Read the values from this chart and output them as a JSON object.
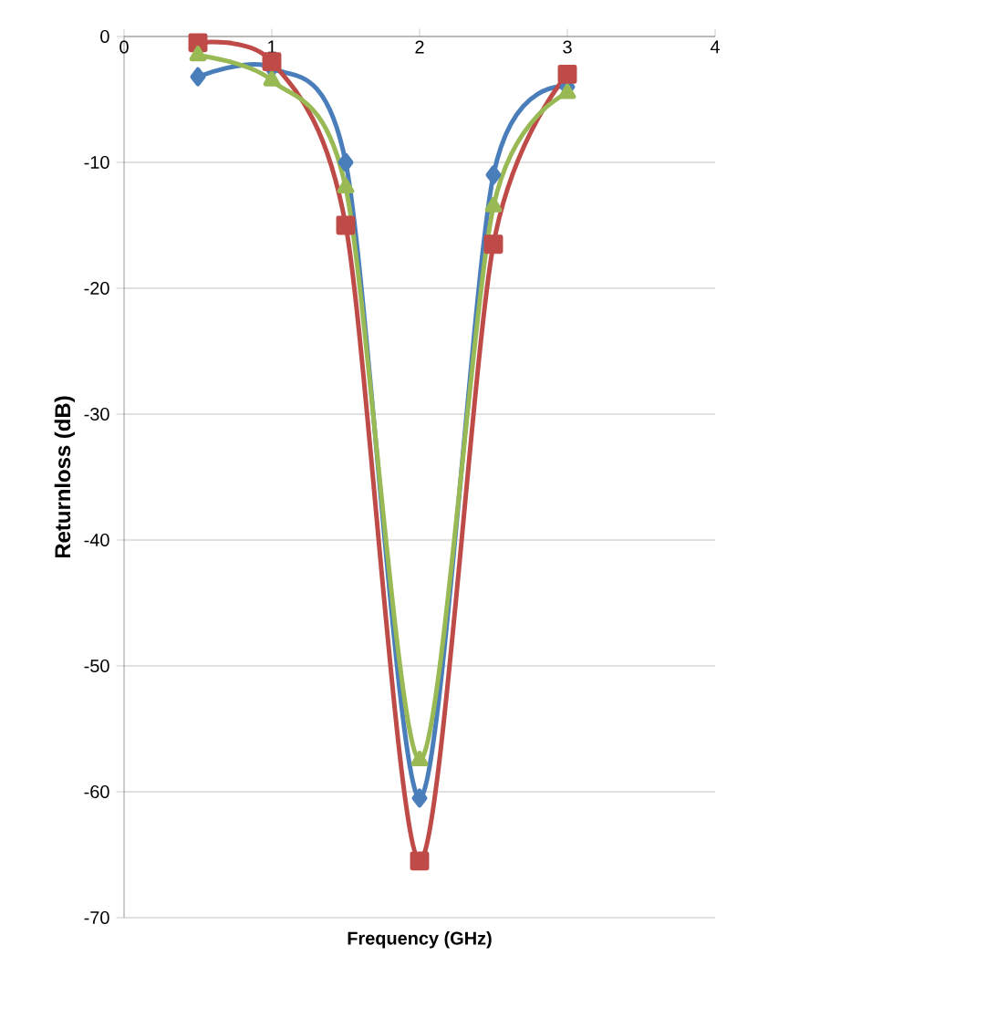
{
  "chart_data": {
    "type": "line",
    "xlabel": "Frequency (GHz)",
    "ylabel": "Returnloss (dB)",
    "xlim": [
      0,
      4
    ],
    "xticks": [
      0,
      1,
      2,
      3,
      4
    ],
    "ylim": [
      -70,
      0
    ],
    "yticks": [
      -70,
      -60,
      -50,
      -40,
      -30,
      -20,
      -10,
      0
    ],
    "grid": "y",
    "series": [
      {
        "color": "#4a7ebb",
        "marker": "diamond",
        "x": [
          0.5,
          1,
          1.5,
          2,
          2.5,
          3
        ],
        "values": [
          -3.2,
          -2.5,
          -10,
          -60.5,
          -11,
          -4
        ]
      },
      {
        "color": "#be4b48",
        "marker": "square",
        "x": [
          0.5,
          1,
          1.5,
          2,
          2.5,
          3
        ],
        "values": [
          -0.5,
          -2,
          -15,
          -65.5,
          -16.5,
          -3
        ]
      },
      {
        "color": "#98b954",
        "marker": "triangle",
        "x": [
          0.5,
          1,
          1.5,
          2,
          2.5,
          3
        ],
        "values": [
          -1.5,
          -3.5,
          -12,
          -57.5,
          -13.5,
          -4.5
        ]
      }
    ]
  }
}
